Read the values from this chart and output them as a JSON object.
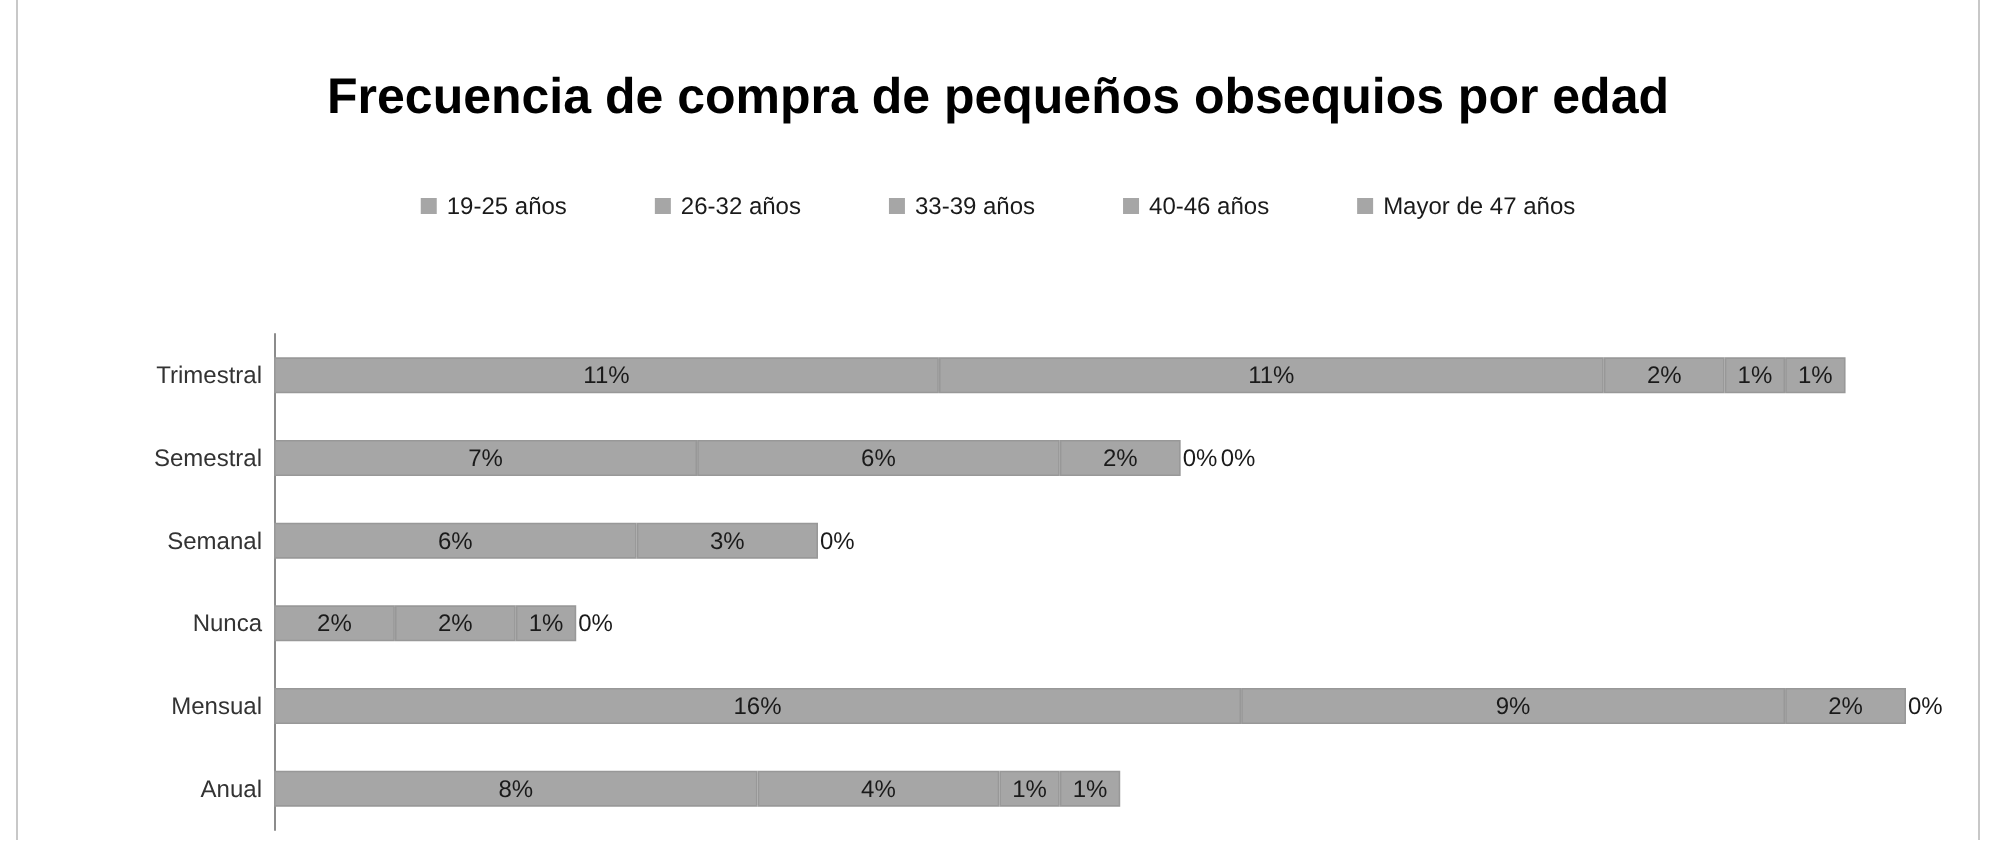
{
  "chart_data": {
    "type": "bar",
    "orientation": "horizontal",
    "stacked": true,
    "title": "Frecuencia de compra de pequeños obsequios por edad",
    "legend": "top",
    "tick_labels": "y",
    "categories": [
      "Trimestral",
      "Semestral",
      "Semanal",
      "Nunca",
      "Mensual",
      "Anual"
    ],
    "series": [
      {
        "name": "19-25 años",
        "color": "#a6a6a6",
        "values": [
          11,
          7,
          6,
          2,
          16,
          8
        ],
        "value_labels": [
          "11%",
          "7%",
          "6%",
          "2%",
          "16%",
          "8%"
        ]
      },
      {
        "name": "26-32 años",
        "color": "#a6a6a6",
        "values": [
          11,
          6,
          3,
          2,
          9,
          4
        ],
        "value_labels": [
          "11%",
          "6%",
          "3%",
          "2%",
          "9%",
          "4%"
        ]
      },
      {
        "name": "33-39 años",
        "color": "#a6a6a6",
        "values": [
          2,
          2,
          0,
          1,
          2,
          1
        ],
        "value_labels": [
          "2%",
          "2%",
          "0%",
          "1%",
          "2%",
          "1%"
        ]
      },
      {
        "name": "40-46 años",
        "color": "#a6a6a6",
        "values": [
          1,
          0,
          null,
          0,
          0,
          1
        ],
        "value_labels": [
          "1%",
          "0%",
          null,
          "0%",
          "0%",
          "1%"
        ]
      },
      {
        "name": "Mayor de 47 años",
        "color": "#a6a6a6",
        "values": [
          1,
          0,
          null,
          null,
          null,
          null
        ],
        "value_labels": [
          "1%",
          "0%",
          null,
          null,
          null,
          null
        ]
      }
    ]
  }
}
